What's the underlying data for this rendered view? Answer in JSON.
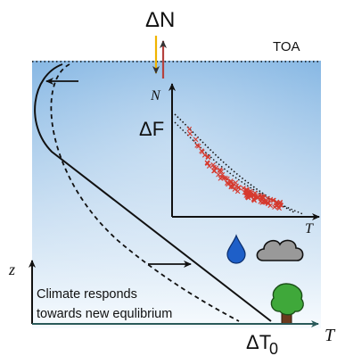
{
  "top_label": "ΔN",
  "toa_label": "TOA",
  "inset": {
    "y_axis_label": "N",
    "x_axis_label": "T",
    "forcing_label": "ΔF"
  },
  "z_axis_label": "z",
  "x_axis_label": "T",
  "equilibrium_label": "ΔT",
  "equilibrium_subscript": "0",
  "caption_line1": "Climate responds",
  "caption_line2": "towards new equlibrium",
  "colors": {
    "sky_top": "#7fb3e2",
    "sky_bottom": "#eef5fb",
    "down_arrow": "#f0b400",
    "up_arrow": "#b5423e",
    "scatter": "#d63a2f",
    "drop": "#1e5fc8",
    "cloud": "#999999",
    "tree_canopy": "#3fa83a",
    "tree_trunk": "#6b3a1e",
    "t_axis": "#2a5a5a"
  },
  "icons": [
    "water-drop-icon",
    "cloud-icon",
    "tree-icon"
  ]
}
